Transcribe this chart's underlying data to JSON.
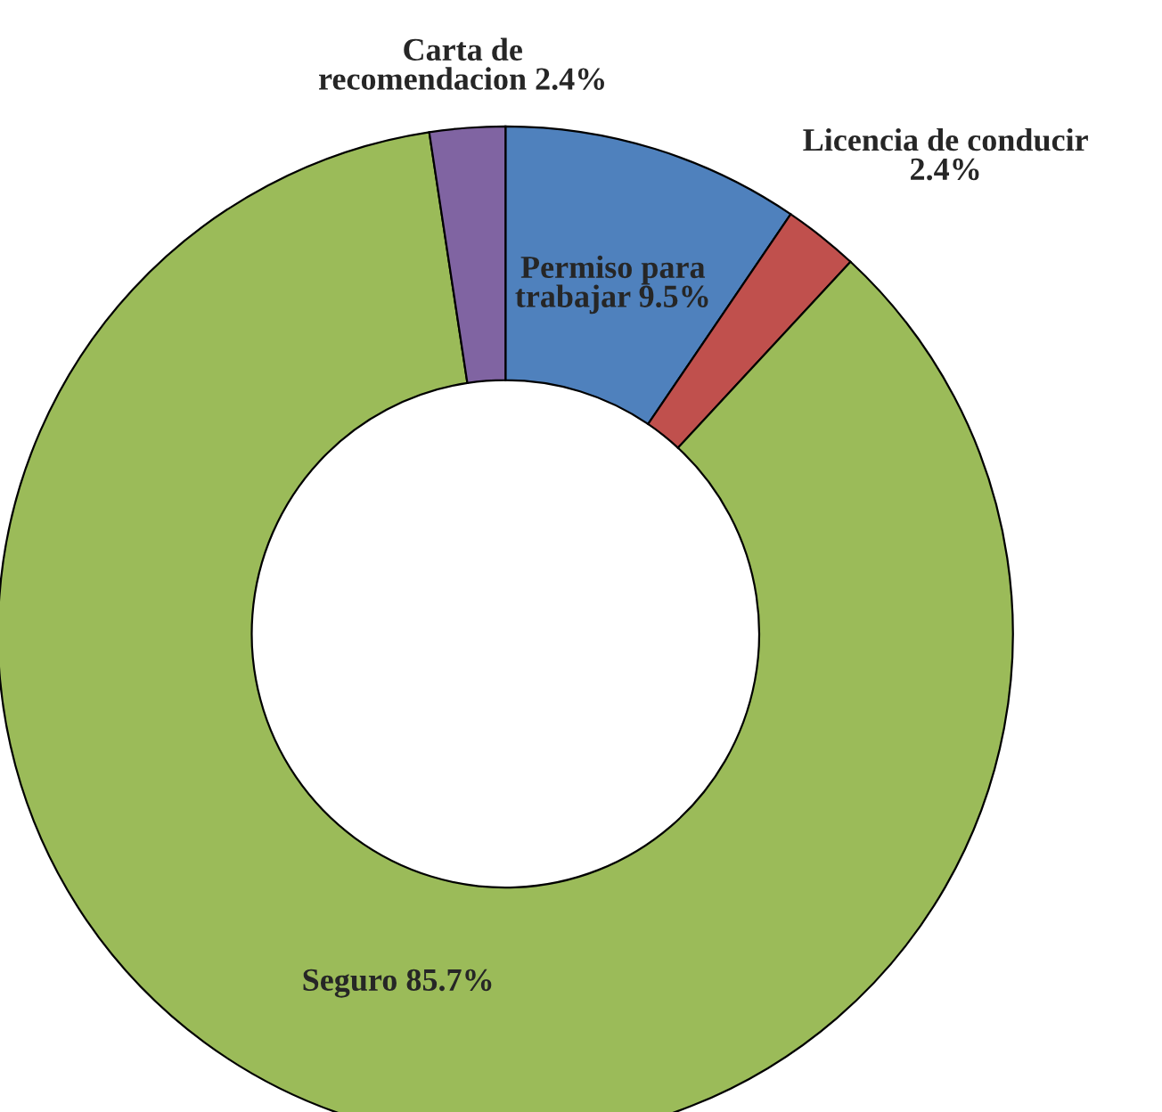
{
  "chart_data": {
    "type": "donut",
    "categories": [
      "Permiso para\ntrabajar",
      "Licencia de conducir",
      "Seguro",
      "Carta de\nrecomendacion"
    ],
    "values": [
      9.5,
      2.4,
      85.7,
      2.4
    ],
    "value_labels": [
      "9.5%",
      "2.4%",
      "85.7%",
      "2.4%"
    ],
    "colors": [
      "#4f81bd",
      "#c0504d",
      "#9bbb59",
      "#8064a2"
    ],
    "legend": false
  }
}
